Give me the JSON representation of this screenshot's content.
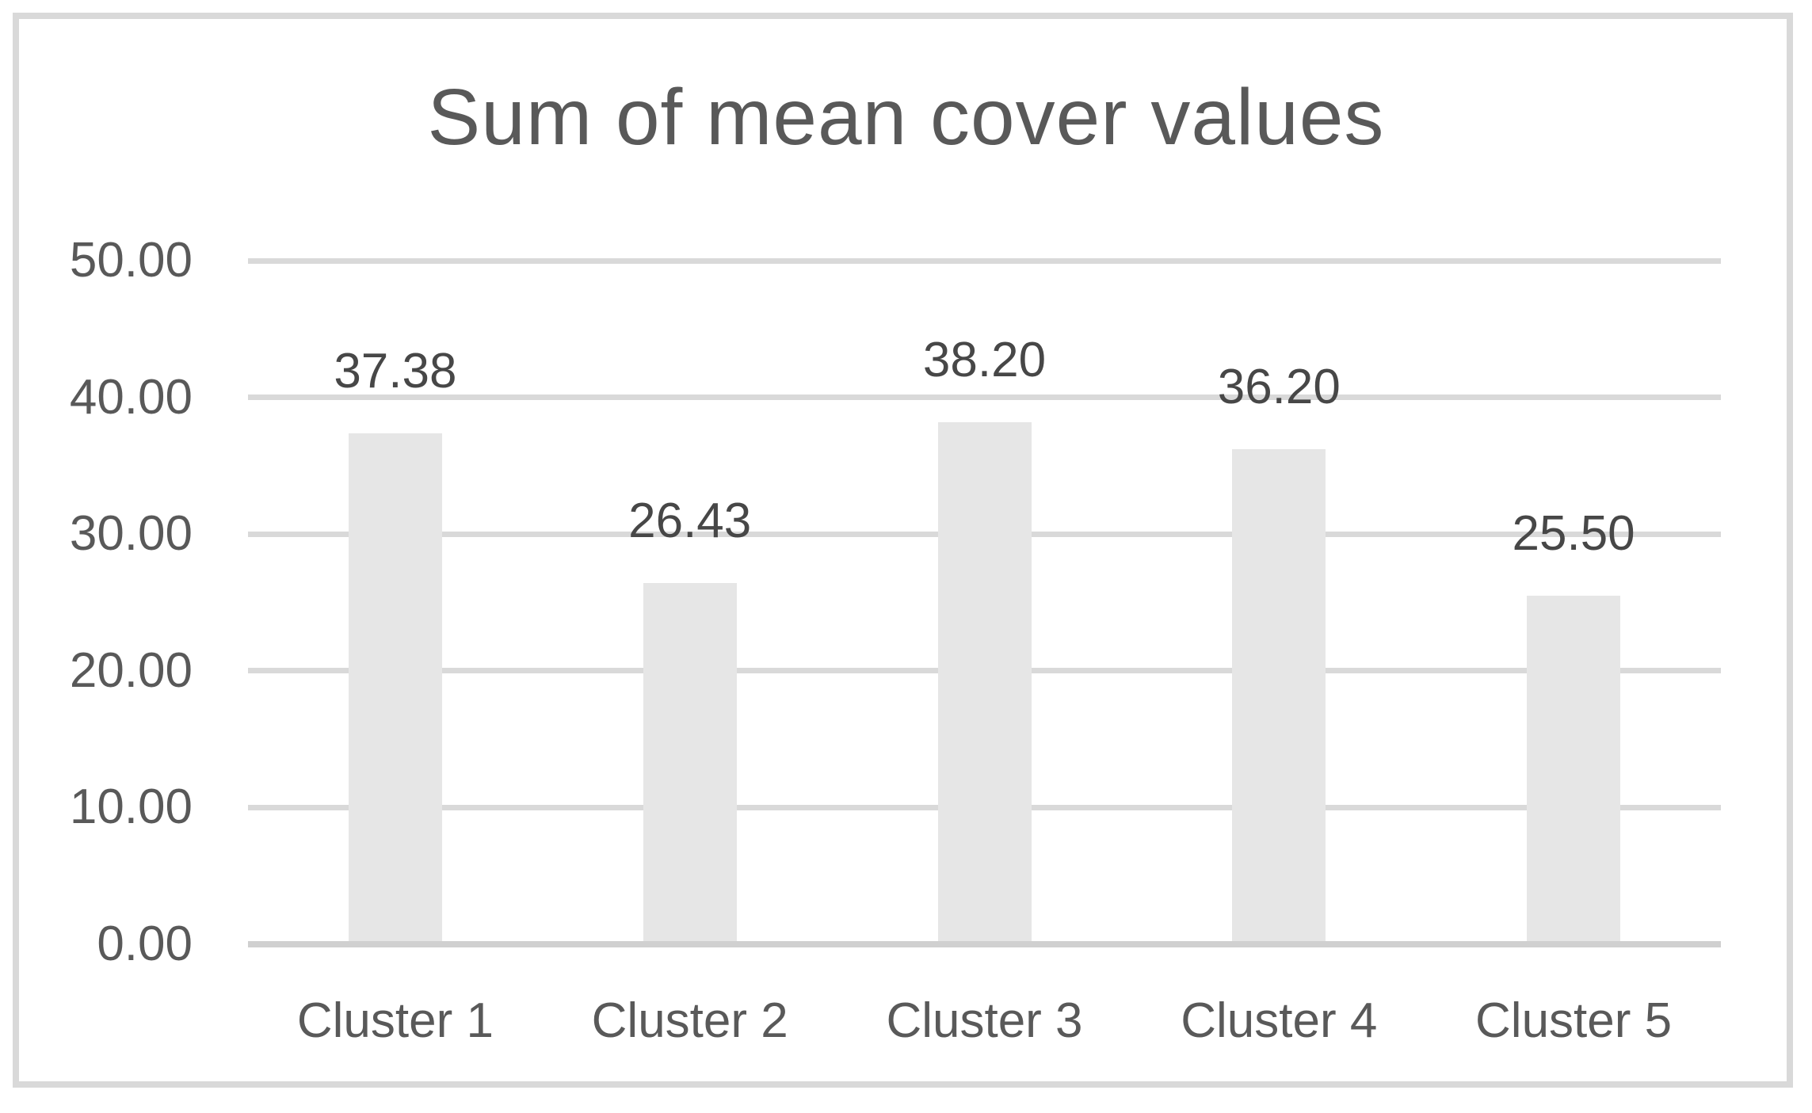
{
  "chart_data": {
    "type": "bar",
    "title": "Sum of mean cover values",
    "categories": [
      "Cluster 1",
      "Cluster 2",
      "Cluster 3",
      "Cluster 4",
      "Cluster 5"
    ],
    "values": [
      37.38,
      26.43,
      38.2,
      36.2,
      25.5
    ],
    "value_labels": [
      "37.38",
      "26.43",
      "38.20",
      "36.20",
      "25.50"
    ],
    "xlabel": "",
    "ylabel": "",
    "ylim": [
      0,
      50
    ],
    "y_ticks": {
      "values": [
        0,
        10,
        20,
        30,
        40,
        50
      ],
      "labels": [
        "0.00",
        "10.00",
        "20.00",
        "30.00",
        "40.00",
        "50.00"
      ]
    },
    "grid": true,
    "legend": "none"
  },
  "colors": {
    "background": "#ffffff",
    "frame_border": "#d9d9d9",
    "bar_fill": "#e6e6e6",
    "gridline": "#d9d9d9",
    "axis_line": "#d0d0d0",
    "title_text": "#595959",
    "tick_text": "#595959",
    "data_label_text": "#474747"
  }
}
